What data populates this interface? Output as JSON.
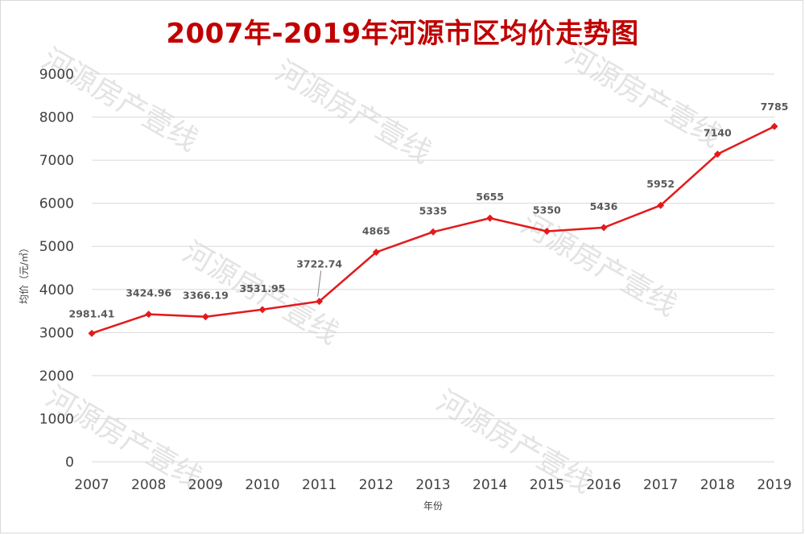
{
  "watermark_text": "河源房产壹线",
  "chart_data": {
    "type": "line",
    "title": "2007年-2019年河源市区均价走势图",
    "xlabel": "年份",
    "ylabel": "均价（元/㎡）",
    "ylim": [
      0,
      9000
    ],
    "ytick_step": 1000,
    "grid": true,
    "legend": "none",
    "line_color": "#e31a1c",
    "categories": [
      "2007",
      "2008",
      "2009",
      "2010",
      "2011",
      "2012",
      "2013",
      "2014",
      "2015",
      "2016",
      "2017",
      "2018",
      "2019"
    ],
    "values": [
      2981.41,
      3424.96,
      3366.19,
      3531.95,
      3722.74,
      4865,
      5335,
      5655,
      5350,
      5436,
      5952,
      7140,
      7785
    ],
    "data_labels": [
      "2981.41",
      "3424.96",
      "3366.19",
      "3531.95",
      "3722.74",
      "4865",
      "5335",
      "5655",
      "5350",
      "5436",
      "5952",
      "7140",
      "7785"
    ]
  }
}
